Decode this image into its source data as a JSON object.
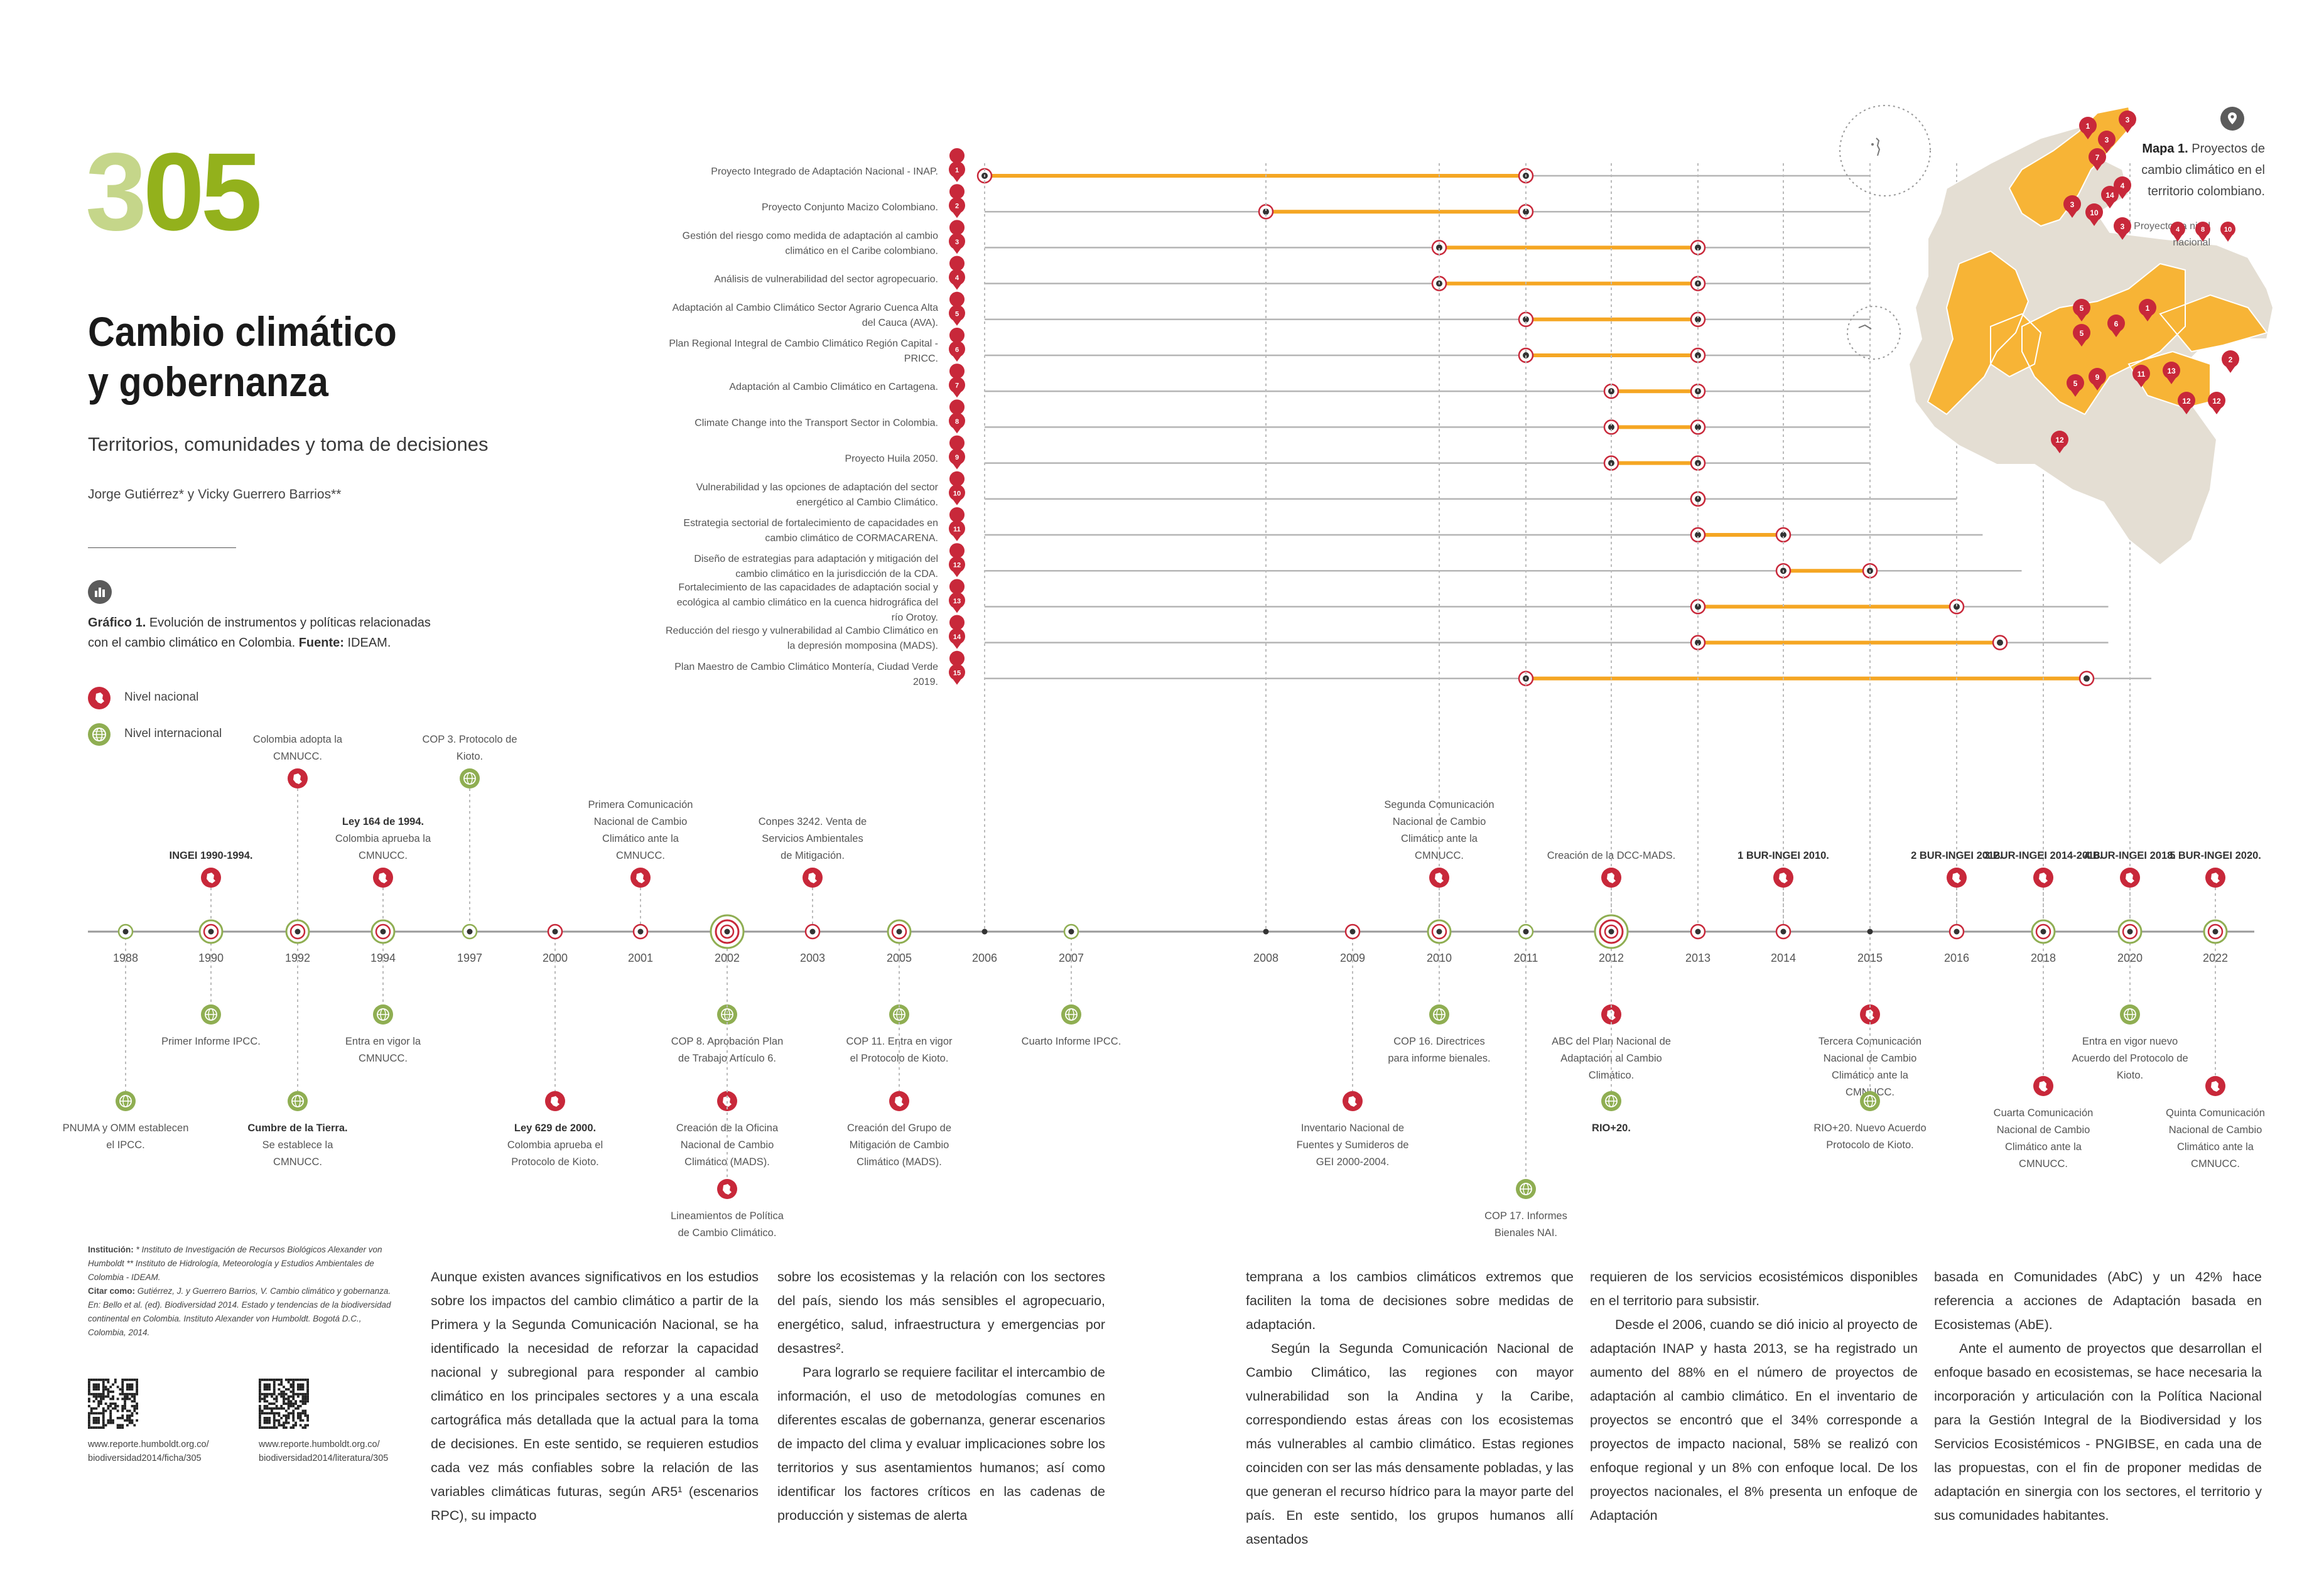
{
  "page": {
    "number_a": "3",
    "number_b": "05",
    "title_line1": "Cambio climático",
    "title_line2": "y gobernanza",
    "subtitle": "Territorios, comunidades y toma de decisiones",
    "authors": "Jorge Gutiérrez* y Vicky Guerrero Barrios**"
  },
  "figure": {
    "caption_bold": "Gráfico 1.",
    "caption_text": " Evolución de instrumentos y políticas relacionadas con el cambio climático en Colombia. ",
    "caption_source_bold": "Fuente:",
    "caption_source": " IDEAM."
  },
  "legend": {
    "national": "Nivel nacional",
    "international": "Nivel internacional"
  },
  "colors": {
    "green_light": "#c5d68a",
    "green_dark": "#93b11c",
    "national_red": "#c8283a",
    "international_green": "#8fae52",
    "project_orange": "#f5a623",
    "map_gray": "#e4ded3"
  },
  "chart_data": {
    "type": "timeline",
    "years": [
      "1988",
      "1990",
      "1992",
      "1994",
      "1997",
      "2000",
      "2001",
      "2002",
      "2003",
      "2005",
      "2006",
      "2007",
      "2008",
      "2009",
      "2010",
      "2011",
      "2012",
      "2013",
      "2014",
      "2015",
      "2016",
      "2018",
      "2020",
      "2022"
    ],
    "events_above": [
      {
        "year": "1990",
        "bold": "INGEI 1990-1994.",
        "text": "",
        "level": "national"
      },
      {
        "year": "1992",
        "bold": "",
        "text": "Colombia adopta la CMNUCC.",
        "level": "national"
      },
      {
        "year": "1994",
        "bold": "Ley 164 de 1994.",
        "text": "Colombia aprueba la CMNUCC.",
        "level": "national"
      },
      {
        "year": "1997",
        "bold": "COP 3.",
        "text": "Protocolo de Kioto.",
        "level": "international"
      },
      {
        "year": "2001",
        "bold": "",
        "text": "Primera Comunicación Nacional de Cambio Climático ante la CMNUCC.",
        "level": "national"
      },
      {
        "year": "2003",
        "bold": "Conpes 3242.",
        "text": "Venta de Servicios Ambientales de Mitigación.",
        "level": "national"
      },
      {
        "year": "2010",
        "bold": "",
        "text": "Segunda Comunicación Nacional de Cambio Climático ante la CMNUCC.",
        "level": "national"
      },
      {
        "year": "2012",
        "bold": "",
        "text": "Creación de la DCC-MADS.",
        "level": "national"
      },
      {
        "year": "2014",
        "bold": "1 BUR-INGEI 2010.",
        "text": "",
        "level": "national"
      },
      {
        "year": "2016",
        "bold": "2 BUR-INGEI 2012.",
        "text": "",
        "level": "national"
      },
      {
        "year": "2018",
        "bold": "3 BUR-INGEI 2014-2016.",
        "text": "",
        "level": "national"
      },
      {
        "year": "2020",
        "bold": "4 BUR-INGEI 2018.",
        "text": "",
        "level": "national"
      },
      {
        "year": "2022",
        "bold": "5 BUR-INGEI 2020.",
        "text": "",
        "level": "national"
      }
    ],
    "events_below": [
      {
        "year": "1988",
        "bold": "",
        "text": "PNUMA y OMM establecen el IPCC.",
        "level": "international",
        "tier": 3
      },
      {
        "year": "1990",
        "bold": "",
        "text": "Primer Informe IPCC.",
        "level": "international",
        "tier": 1
      },
      {
        "year": "1992",
        "bold": "Cumbre de la Tierra.",
        "text": "Se establece la CMNUCC.",
        "level": "international",
        "tier": 3
      },
      {
        "year": "1994",
        "bold": "",
        "text": "Entra en vigor la CMNUCC.",
        "level": "international",
        "tier": 1
      },
      {
        "year": "2000",
        "bold": "Ley 629 de 2000.",
        "text": "Colombia aprueba el Protocolo de Kioto.",
        "level": "national",
        "tier": 3
      },
      {
        "year": "2002",
        "bold": "COP 8.",
        "text": "Aprobación Plan de Trabajo Artículo 6.",
        "level": "international",
        "tier": 1
      },
      {
        "year": "2002",
        "bold": "",
        "text": "Creación de la Oficina Nacional de Cambio Climático (MADS).",
        "level": "national",
        "tier": 3
      },
      {
        "year": "2002",
        "bold": "",
        "text": "Lineamientos de Política de Cambio Climático.",
        "level": "national",
        "tier": 4
      },
      {
        "year": "2005",
        "bold": "COP 11.",
        "text": "Entra en vigor el Protocolo de Kioto.",
        "level": "international",
        "tier": 1
      },
      {
        "year": "2005",
        "bold": "",
        "text": "Creación del Grupo de Mitigación de Cambio Climático (MADS).",
        "level": "national",
        "tier": 3
      },
      {
        "year": "2007",
        "bold": "",
        "text": "Cuarto Informe IPCC.",
        "level": "international",
        "tier": 1
      },
      {
        "year": "2009",
        "bold": "",
        "text": "Inventario Nacional de Fuentes y Sumideros de GEI 2000-2004.",
        "level": "national",
        "tier": 3
      },
      {
        "year": "2010",
        "bold": "COP 16.",
        "text": "Directrices para informe bienales.",
        "level": "international",
        "tier": 1
      },
      {
        "year": "2011",
        "bold": "COP 17.",
        "text": "Informes Bienales NAI.",
        "level": "international",
        "tier": 4
      },
      {
        "year": "2012",
        "bold": "",
        "text": "ABC del Plan Nacional de Adaptación al Cambio Climático.",
        "level": "national",
        "tier": 1
      },
      {
        "year": "2012",
        "bold": "RIO+20.",
        "text": "",
        "level": "international",
        "tier": 3
      },
      {
        "year": "2015",
        "bold": "",
        "text": "Tercera Comunicación Nacional de Cambio Climático ante la CMNUCC.",
        "level": "national",
        "tier": 1
      },
      {
        "year": "2015",
        "bold": "RIO+20.",
        "text": "Nuevo Acuerdo Protocolo de Kioto.",
        "level": "international",
        "tier": 3
      },
      {
        "year": "2018",
        "bold": "",
        "text": "Cuarta Comunicación Nacional de Cambio Climático ante la CMNUCC.",
        "level": "national",
        "tier": 2
      },
      {
        "year": "2020",
        "bold": "",
        "text": "Entra en vigor nuevo Acuerdo del Protocolo de Kioto.",
        "level": "international",
        "tier": 1
      },
      {
        "year": "2022",
        "bold": "",
        "text": "Quinta Comunicación Nacional de Cambio Climático ante la CMNUCC.",
        "level": "national",
        "tier": 2
      }
    ],
    "projects": [
      {
        "id": "1",
        "name": "Proyecto Integrado de Adaptación Nacional - INAP.",
        "start": 2006,
        "end": 2011,
        "extend": 2015
      },
      {
        "id": "2",
        "name": "Proyecto Conjunto Macizo Colombiano.",
        "start": 2008,
        "end": 2011,
        "extend": 2015
      },
      {
        "id": "3",
        "name": "Gestión del riesgo como medida de adaptación al cambio climático en el Caribe colombiano.",
        "start": 2010,
        "end": 2013,
        "extend": 2015
      },
      {
        "id": "4",
        "name": "Análisis de vulnerabilidad del sector agropecuario.",
        "start": 2010,
        "end": 2013,
        "extend": 2015
      },
      {
        "id": "5",
        "name": "Adaptación al Cambio Climático Sector Agrario Cuenca Alta del Cauca (AVA).",
        "start": 2011,
        "end": 2013,
        "extend": 2015
      },
      {
        "id": "6",
        "name": "Plan Regional Integral de Cambio Climático Región Capital - PRICC.",
        "start": 2011,
        "end": 2013,
        "extend": 2015
      },
      {
        "id": "7",
        "name": "Adaptación al Cambio Climático en Cartagena.",
        "start": 2012,
        "end": 2013,
        "extend": 2015
      },
      {
        "id": "8",
        "name": "Climate Change into the Transport Sector in Colombia.",
        "start": 2012,
        "end": 2013,
        "extend": 2015
      },
      {
        "id": "9",
        "name": "Proyecto Huila 2050.",
        "start": 2012,
        "end": 2013,
        "extend": 2015
      },
      {
        "id": "10",
        "name": "Vulnerabilidad y las opciones de adaptación del sector energético al Cambio Climático.",
        "start": 2013,
        "end": 2013,
        "extend": 2016
      },
      {
        "id": "11",
        "name": "Estrategia sectorial de fortalecimiento de capacidades en cambio climático de CORMACARENA.",
        "start": 2013,
        "end": 2014,
        "extend": 2016.6
      },
      {
        "id": "12",
        "name": "Diseño de estrategias para adaptación y mitigación del cambio climático en la jurisdicción de la CDA.",
        "start": 2014,
        "end": 2015,
        "extend": 2017.5
      },
      {
        "id": "13",
        "name": "Fortalecimiento de las capacidades de adaptación social y ecológica al cambio climático en la cuenca hidrográfica del río Orotoy.",
        "start": 2013,
        "end": 2016,
        "extend": 2019.5
      },
      {
        "id": "14",
        "name": "Reducción del riesgo y vulnerabilidad al Cambio Climático en la depresión momposina (MADS).",
        "start": 2013,
        "end": 2017,
        "extend": 2019.5
      },
      {
        "id": "15",
        "name": "Plan Maestro de Cambio Climático Montería, Ciudad Verde 2019.",
        "start": 2011,
        "end": 2019,
        "extend": 2020.5
      }
    ]
  },
  "map": {
    "caption_bold": "Mapa 1.",
    "caption_text": " Proyectos de cambio climático en el territorio colombiano.",
    "legend_label": "Proyectos a nivel nacional",
    "legend_ids": [
      "4",
      "8",
      "10"
    ],
    "markers": [
      "1",
      "3",
      "3",
      "7",
      "4",
      "10",
      "14",
      "3",
      "3",
      "5",
      "1",
      "6",
      "5",
      "9",
      "5",
      "11",
      "13",
      "12",
      "12",
      "2",
      "12"
    ]
  },
  "source_block": {
    "institucion_bold": "Institución:",
    "institucion": " * Instituto de Investigación de Recursos Biológicos Alexander von Humboldt ** Instituto de Hidrología, Meteorología y Estudios Ambientales de Colombia - IDEAM.",
    "citar_bold": "Citar como:",
    "citar": " Gutiérrez, J. y Guerrero Barrios, V. Cambio climático y gobernanza. En: Bello et al. (ed). Biodiversidad 2014. Estado y tendencias de la biodiversidad continental en Colombia. Instituto Alexander von Humboldt. Bogotá D.C., Colombia, 2014."
  },
  "urls": {
    "url1_a": "www.reporte.humboldt.org.co/",
    "url1_b": "biodiversidad2014/ficha/305",
    "url2_a": "www.reporte.humboldt.org.co/",
    "url2_b": "biodiversidad2014/literatura/305"
  },
  "body": {
    "col1": "Aunque existen avances significativos en los estudios sobre los impactos del cambio climático a partir de la Primera y la Segunda Comunicación Nacional, se ha identificado la necesidad de reforzar la capacidad nacional y subregional para responder al cambio climático en los principales sectores y a una escala cartográfica más detallada que la actual para la toma de decisiones. En este sentido, se requieren estudios cada vez más confiables sobre la relación de las variables climáticas futuras, según AR5¹ (escenarios RPC), su impacto",
    "col2_p1": "sobre los ecosistemas y la relación con los sectores del país, siendo los más sensibles el agropecuario, energético, salud, infraestructura y emergencias por desastres².",
    "col2_p2": "Para lograrlo se requiere facilitar el intercambio de información, el uso de metodologías comunes en diferentes escalas de gobernanza, generar escenarios de impacto del clima y evaluar implicaciones sobre los territorios y sus asentamientos humanos; así como identificar los factores críticos en las cadenas de producción y sistemas de alerta",
    "col3_p1": "temprana a los cambios climáticos extremos que faciliten la toma de decisiones sobre medidas de adaptación.",
    "col3_p2": "Según la Segunda Comunicación Nacional de Cambio Climático, las regiones con mayor vulnerabilidad son la Andina y la Caribe, correspondiendo estas áreas con los ecosistemas más vulnerables al cambio climático. Estas regiones coinciden con ser las más densamente pobladas, y las que generan el recurso hídrico para la mayor parte del país. En este sentido, los grupos humanos allí asentados",
    "col4_p1": "requieren de los servicios ecosistémicos disponibles en el territorio para subsistir.",
    "col4_p2": "Desde el 2006, cuando se dió inicio al proyecto de adaptación INAP y hasta 2013, se ha registrado un aumento del 88% en el número de proyectos de adaptación al cambio climático. En el inventario de proyectos se encontró que el 34% corresponde a proyectos de impacto nacional, 58% se realizó con enfoque regional y un 8% con enfoque local. De los proyectos nacionales, el 8% presenta un enfoque de Adaptación",
    "col5_p1": "basada en Comunidades (AbC) y un 42% hace referencia a acciones de Adaptación basada en Ecosistemas (AbE).",
    "col5_p2": "Ante el aumento de proyectos que desarrollan el enfoque basado en ecosistemas, se hace necesaria la incorporación y articulación con la Política Nacional para la Gestión Integral de la Biodiversidad y los Servicios Ecosistémicos - PNGIBSE, en cada una de las propuestas, con el fin de proponer medidas de adaptación en sinergia con los sectores, el territorio y sus comunidades habitantes."
  }
}
